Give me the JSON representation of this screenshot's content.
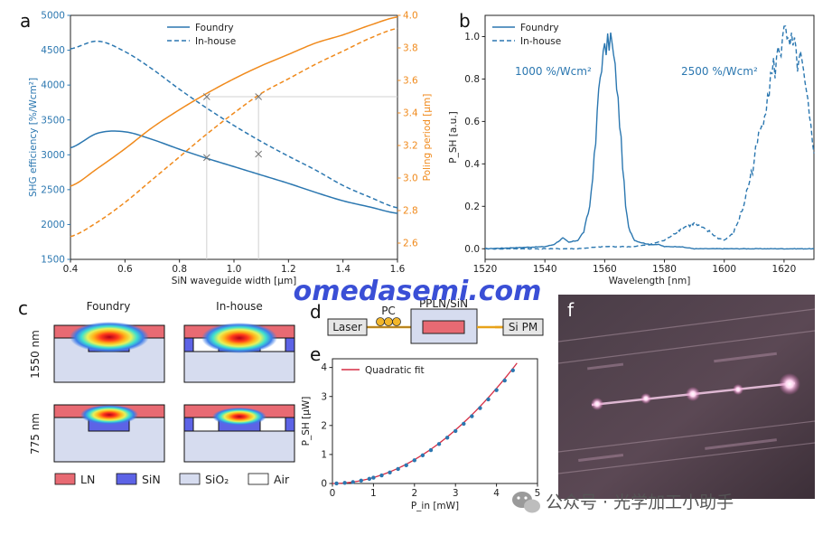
{
  "panel_labels": {
    "a": "a",
    "b": "b",
    "c": "c",
    "d": "d",
    "e": "e",
    "f": "f"
  },
  "colors": {
    "blue": "#2b77b0",
    "orange": "#f08a1c",
    "grey": "#888888",
    "ln": "#e86a73",
    "sin": "#5d63e6",
    "sio2": "#d6dcef",
    "air": "#ffffff",
    "fit": "#d62d44"
  },
  "chart_data": [
    {
      "type": "line",
      "panel": "a",
      "xlabel": "SiN waveguide width [μm]",
      "ylabel": "SHG efficiency [%/Wcm²]",
      "ylabel_right": "Poling period [μm]",
      "xlim": [
        0.4,
        1.6
      ],
      "ylim": [
        1500,
        5000
      ],
      "ylim_right": [
        2.5,
        4.0
      ],
      "xticks": [
        "0.4",
        "0.6",
        "0.8",
        "1.0",
        "1.2",
        "1.4",
        "1.6"
      ],
      "yticks": [
        "1500",
        "2000",
        "2500",
        "3000",
        "3500",
        "4000",
        "4500",
        "5000"
      ],
      "yticks_right": [
        "2.6",
        "2.8",
        "3.0",
        "3.2",
        "3.4",
        "3.6",
        "3.8",
        "4.0"
      ],
      "legend": [
        "Foundry",
        "In-house"
      ],
      "x": [
        0.4,
        0.5,
        0.6,
        0.7,
        0.8,
        0.9,
        1.0,
        1.1,
        1.2,
        1.3,
        1.4,
        1.5,
        1.6
      ],
      "series": [
        {
          "name": "Foundry",
          "axis": "left",
          "values": [
            3100,
            3310,
            3330,
            3220,
            3080,
            2950,
            2830,
            2710,
            2590,
            2460,
            2340,
            2250,
            2160
          ]
        },
        {
          "name": "In-house",
          "axis": "left",
          "values": [
            4520,
            4630,
            4480,
            4230,
            3940,
            3670,
            3420,
            3190,
            2980,
            2780,
            2560,
            2390,
            2240
          ]
        },
        {
          "name": "Foundry",
          "axis": "right",
          "values": [
            2.95,
            3.06,
            3.18,
            3.31,
            3.42,
            3.52,
            3.61,
            3.69,
            3.76,
            3.83,
            3.88,
            3.94,
            3.99
          ]
        },
        {
          "name": "In-house",
          "axis": "right",
          "values": [
            2.64,
            2.73,
            2.85,
            2.99,
            3.13,
            3.27,
            3.4,
            3.52,
            3.61,
            3.7,
            3.78,
            3.86,
            3.92
          ]
        }
      ],
      "markers": [
        {
          "x": 0.9,
          "axis": "left",
          "value": 2960
        },
        {
          "x": 1.09,
          "axis": "left",
          "value": 3010
        },
        {
          "x": 0.9,
          "axis": "right",
          "value": 3.5
        },
        {
          "x": 1.09,
          "axis": "right",
          "value": 3.5
        }
      ],
      "grid": "off"
    },
    {
      "type": "line",
      "panel": "b",
      "xlabel": "Wavelength [nm]",
      "ylabel": "P_SH [a.u.]",
      "xlim": [
        1520,
        1630
      ],
      "ylim": [
        -0.05,
        1.1
      ],
      "xticks": [
        "1520",
        "1540",
        "1560",
        "1580",
        "1600",
        "1620"
      ],
      "yticks": [
        "0.0",
        "0.2",
        "0.4",
        "0.6",
        "0.8",
        "1.0"
      ],
      "legend": [
        "Foundry",
        "In-house"
      ],
      "annotations": [
        "1000 %/Wcm²",
        "2500 %/Wcm²"
      ],
      "series": [
        {
          "name": "Foundry",
          "x": [
            1520,
            1530,
            1540,
            1543,
            1546,
            1548,
            1551,
            1553,
            1555,
            1557,
            1558,
            1559,
            1560,
            1561,
            1562,
            1563,
            1564,
            1565,
            1566,
            1567,
            1568,
            1570,
            1572,
            1575,
            1578,
            1580,
            1585,
            1590,
            1600,
            1610,
            1620,
            1630
          ],
          "values": [
            0.0,
            0.005,
            0.01,
            0.02,
            0.05,
            0.03,
            0.04,
            0.08,
            0.2,
            0.5,
            0.75,
            0.88,
            0.93,
            0.96,
            1.0,
            0.9,
            0.78,
            0.6,
            0.4,
            0.2,
            0.1,
            0.04,
            0.03,
            0.02,
            0.02,
            0.01,
            0.01,
            0.0,
            0.0,
            0.0,
            0.0,
            0.0
          ]
        },
        {
          "name": "In-house",
          "x": [
            1520,
            1540,
            1550,
            1560,
            1570,
            1575,
            1580,
            1585,
            1588,
            1590,
            1592,
            1595,
            1598,
            1600,
            1603,
            1606,
            1609,
            1612,
            1614,
            1616,
            1618,
            1619,
            1620,
            1621,
            1622,
            1624,
            1626,
            1628,
            1630
          ],
          "values": [
            0.0,
            0.0,
            0.0,
            0.01,
            0.01,
            0.02,
            0.04,
            0.09,
            0.11,
            0.12,
            0.1,
            0.08,
            0.05,
            0.04,
            0.07,
            0.18,
            0.35,
            0.55,
            0.7,
            0.82,
            0.9,
            0.95,
            1.1,
            0.92,
            0.96,
            0.9,
            0.85,
            0.65,
            0.45
          ]
        }
      ],
      "grid": "off"
    },
    {
      "type": "scatter",
      "panel": "e",
      "xlabel": "P_in [mW]",
      "ylabel": "P_SH [μW]",
      "xlim": [
        0,
        5
      ],
      "ylim": [
        0,
        4.3
      ],
      "xticks": [
        "0",
        "1",
        "2",
        "3",
        "4",
        "5"
      ],
      "yticks": [
        "0",
        "1",
        "2",
        "3",
        "4"
      ],
      "legend": [
        "Quadratic fit"
      ],
      "x": [
        0.1,
        0.3,
        0.5,
        0.7,
        0.9,
        1.0,
        1.2,
        1.4,
        1.6,
        1.8,
        2.0,
        2.2,
        2.4,
        2.6,
        2.8,
        3.0,
        3.2,
        3.4,
        3.6,
        3.8,
        4.0,
        4.2,
        4.4
      ],
      "values": [
        0.002,
        0.02,
        0.05,
        0.1,
        0.16,
        0.2,
        0.28,
        0.38,
        0.5,
        0.63,
        0.8,
        0.97,
        1.15,
        1.36,
        1.58,
        1.81,
        2.06,
        2.32,
        2.6,
        2.9,
        3.22,
        3.55,
        3.9
      ],
      "fit": {
        "name": "Quadratic fit",
        "a": 0.205
      },
      "grid": "off"
    }
  ],
  "panel_c": {
    "col_headers": [
      "Foundry",
      "In-house"
    ],
    "row_labels": [
      "1550 nm",
      "775 nm"
    ],
    "legend": [
      {
        "label": "LN",
        "color": "#e86a73"
      },
      {
        "label": "SiN",
        "color": "#5d63e6"
      },
      {
        "label": "SiO₂",
        "color": "#d6dcef"
      },
      {
        "label": "Air",
        "color": "#ffffff"
      }
    ]
  },
  "panel_d": {
    "laser": "Laser",
    "pc": "PC",
    "chip": "PPLN/SiN",
    "detector": "Si PM"
  },
  "watermark": "omedasemi.com",
  "footer": "公众号 · 光学加工小助手"
}
